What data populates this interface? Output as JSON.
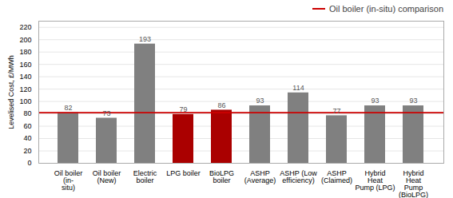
{
  "chart_data": {
    "type": "bar",
    "categories": [
      "Oil boiler (in-\nsitu)",
      "Oil boiler (New)",
      "Electric boiler",
      "LPG boiler",
      "BioLPG boiler",
      "ASHP (Average)",
      "ASHP (Low\nefficiency)",
      "ASHP (Claimed)",
      "Hybrid Heat\nPump (LPG)",
      "Hybrid Heat\nPump (BioLPG)"
    ],
    "values": [
      82,
      73,
      193,
      79,
      86,
      93,
      114,
      77,
      93,
      93
    ],
    "colors": [
      "#808080",
      "#808080",
      "#808080",
      "#aa0000",
      "#aa0000",
      "#808080",
      "#808080",
      "#808080",
      "#808080",
      "#808080"
    ],
    "ylabel": "Levelised Cost, £/MWh",
    "ylim": [
      0,
      230
    ],
    "yticks": [
      0,
      20,
      40,
      60,
      80,
      100,
      120,
      140,
      160,
      180,
      200,
      220
    ],
    "grid": true,
    "data_labels": true,
    "legend": "upper right",
    "reference_line": {
      "value": 82,
      "label": "Oil boiler (in-situ) comparison",
      "color": "#cc0000"
    }
  }
}
